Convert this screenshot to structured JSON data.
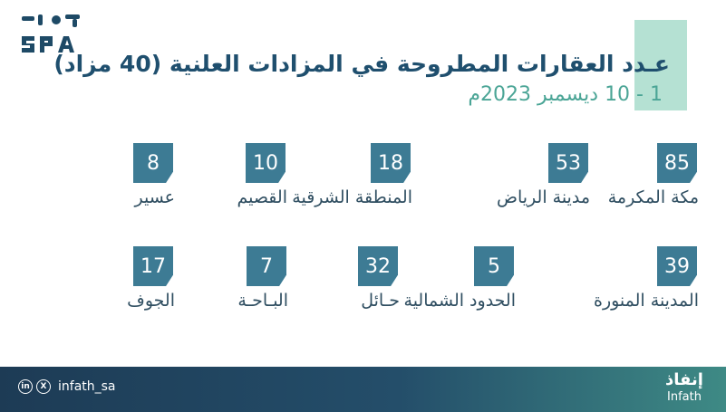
{
  "header": {
    "title": "عـدد العقارات المطروحة في المزادات العلنية (40 مزاد)",
    "date_range": "1 - 10 ديسمبر 2023م"
  },
  "colors": {
    "badge": "#3d7b94",
    "title": "#1f4f6e",
    "subtitle": "#4ba596",
    "accent": "#a8dccb",
    "footer": "#1d3b55"
  },
  "regions": [
    {
      "count": "85",
      "name": "مكة المكرمة"
    },
    {
      "count": "53",
      "name": "مدينة الرياض"
    },
    {
      "count": "18",
      "name": "المنطقة الشرقية"
    },
    {
      "count": "10",
      "name": "القصيم"
    },
    {
      "count": "8",
      "name": "عسير"
    },
    {
      "count": "39",
      "name": "المدينة المنورة"
    },
    {
      "count": "5",
      "name": "الحدود الشمالية"
    },
    {
      "count": "32",
      "name": "حـائل"
    },
    {
      "count": "7",
      "name": "البـاحـة"
    },
    {
      "count": "17",
      "name": "الجوف"
    }
  ],
  "footer": {
    "handle": "infath_sa",
    "linkedin_icon_text": "in",
    "x_icon_text": "X",
    "brand_ar": "إنفاذ",
    "brand_en": "Infath"
  }
}
